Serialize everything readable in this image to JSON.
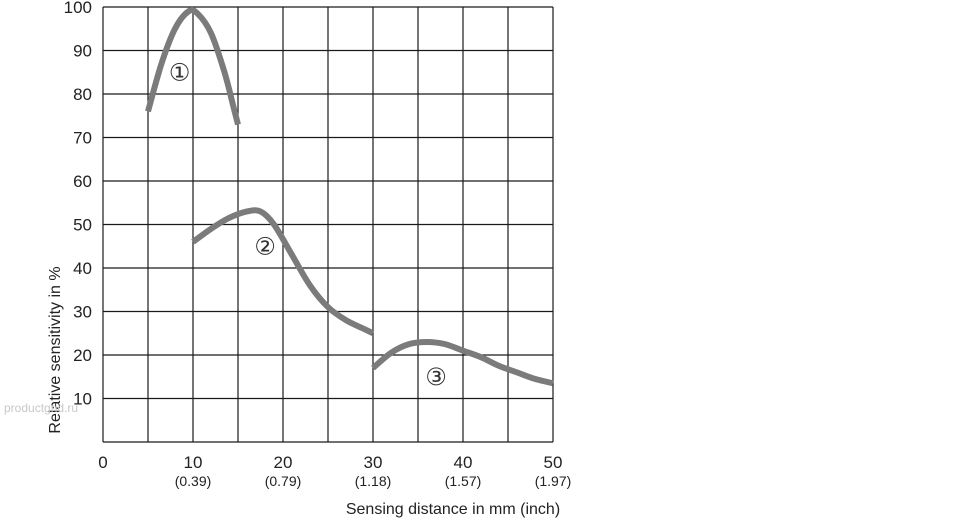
{
  "chart_data": {
    "type": "line",
    "title": "",
    "xlabel": "Sensing distance in mm (inch)",
    "ylabel": "Relative sensitivity in %",
    "xlim": [
      0,
      50
    ],
    "ylim": [
      0,
      100
    ],
    "grid": true,
    "x_ticks": [
      {
        "value": 0,
        "label": "0",
        "sub": ""
      },
      {
        "value": 10,
        "label": "10",
        "sub": "(0.39)"
      },
      {
        "value": 20,
        "label": "20",
        "sub": "(0.79)"
      },
      {
        "value": 30,
        "label": "30",
        "sub": "(1.18)"
      },
      {
        "value": 40,
        "label": "40",
        "sub": "(1.57)"
      },
      {
        "value": 50,
        "label": "50",
        "sub": "(1.97)"
      }
    ],
    "y_ticks": [
      10,
      20,
      30,
      40,
      50,
      60,
      70,
      80,
      90,
      100
    ],
    "series": [
      {
        "label": "①",
        "label_pos": {
          "x": 8.5,
          "y": 85
        },
        "x": [
          5,
          6.5,
          8,
          9.5,
          10.5,
          12,
          13.5,
          14.5,
          15
        ],
        "y": [
          76,
          87,
          95,
          99,
          98.5,
          94,
          85,
          77,
          73
        ]
      },
      {
        "label": "②",
        "label_pos": {
          "x": 18,
          "y": 45
        },
        "x": [
          10,
          12,
          14,
          16,
          17.5,
          19,
          21,
          23,
          25,
          27,
          29,
          30
        ],
        "y": [
          46,
          49,
          51.5,
          53,
          53,
          50,
          43,
          36,
          31,
          28,
          26,
          25
        ]
      },
      {
        "label": "③",
        "label_pos": {
          "x": 37,
          "y": 15
        },
        "x": [
          30,
          32,
          34,
          36,
          38,
          40,
          42,
          44,
          46,
          48,
          50
        ],
        "y": [
          17,
          20.5,
          22.5,
          23,
          22.5,
          21,
          19.5,
          17.5,
          16,
          14.5,
          13.5
        ]
      }
    ]
  },
  "watermark": "productgrid.ru"
}
